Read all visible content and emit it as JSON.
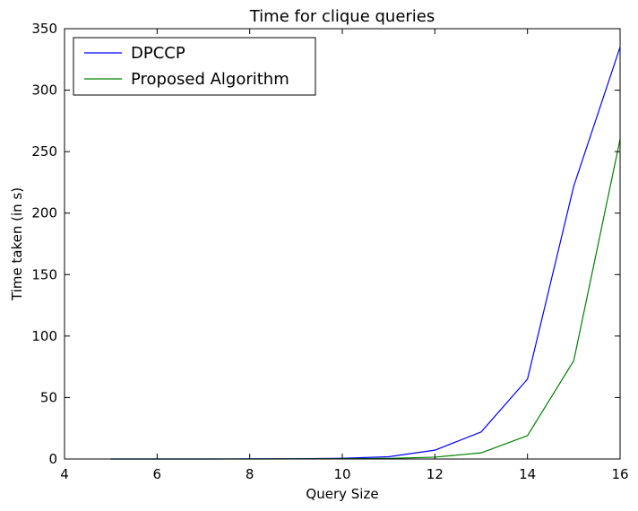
{
  "chart_data": {
    "type": "line",
    "title": "Time for clique queries",
    "xlabel": "Query Size",
    "ylabel": "Time taken (in s)",
    "xlim": [
      4,
      16
    ],
    "ylim": [
      0,
      350
    ],
    "xticks": [
      4,
      6,
      8,
      10,
      12,
      14,
      16
    ],
    "yticks": [
      0,
      50,
      100,
      150,
      200,
      250,
      300,
      350
    ],
    "grid": false,
    "legend_position": "top-left",
    "x": [
      5,
      6,
      7,
      8,
      9,
      10,
      11,
      12,
      13,
      14,
      15,
      16
    ],
    "series": [
      {
        "name": "DPCCP",
        "color": "#0000ff",
        "values": [
          0.0,
          0.0,
          0.0,
          0.1,
          0.2,
          0.6,
          1.8,
          7.2,
          22.0,
          65.0,
          222.0,
          335.0
        ]
      },
      {
        "name": "Proposed Algorithm",
        "color": "#008000",
        "values": [
          0.0,
          0.0,
          0.0,
          0.0,
          0.1,
          0.2,
          0.5,
          1.5,
          5.0,
          19.0,
          80.0,
          260.0
        ]
      }
    ]
  }
}
